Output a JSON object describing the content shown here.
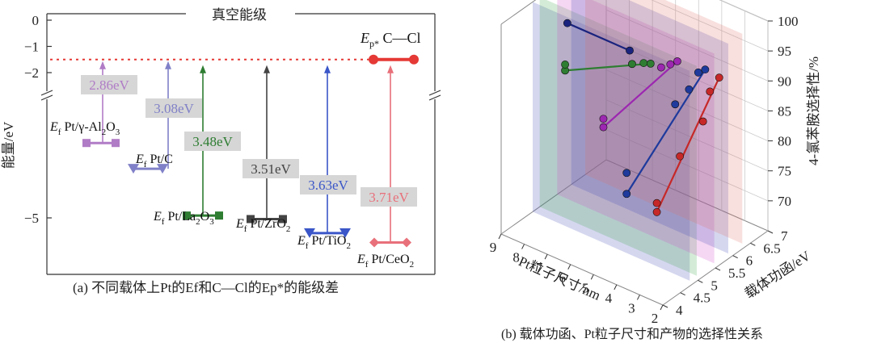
{
  "chart_data": [
    {
      "type": "energy-level-diagram",
      "caption": "(a) 不同载体上Pt的Ef和C—Cl的Ep*的能级差",
      "ylabel": "能量/eV",
      "yticks": [
        "0",
        "−1",
        "−2",
        "−5"
      ],
      "vacuum_label": "真空能级",
      "ep_level": -1.5,
      "ep_label": "Ep* C—Cl",
      "levels": [
        {
          "name": "Ef Pt/γ-Al2O3",
          "label_main": "Pt/γ-Al",
          "label_sub1": "2",
          "label_mid": "O",
          "label_sub2": "3",
          "ef": -4.36,
          "gap": "2.86eV",
          "color": "#b07cc6"
        },
        {
          "name": "Ef Pt/C",
          "label_main": "Pt/C",
          "label_sub1": "",
          "label_mid": "",
          "label_sub2": "",
          "ef": -4.58,
          "gap": "3.08eV",
          "color": "#8080c8"
        },
        {
          "name": "Ef Pt/La2O3",
          "label_main": "Pt/La",
          "label_sub1": "2",
          "label_mid": "O",
          "label_sub2": "3",
          "ef": -4.98,
          "gap": "3.48eV",
          "color": "#2e7d32"
        },
        {
          "name": "Ef Pt/ZrO2",
          "label_main": "Pt/ZrO",
          "label_sub1": "2",
          "label_mid": "",
          "label_sub2": "",
          "ef": -5.01,
          "gap": "3.51eV",
          "color": "#444444"
        },
        {
          "name": "Ef Pt/TiO2",
          "label_main": "Pt/TiO",
          "label_sub1": "2",
          "label_mid": "",
          "label_sub2": "",
          "ef": -5.13,
          "gap": "3.63eV",
          "color": "#3a56c8"
        },
        {
          "name": "Ef Pt/CeO2",
          "label_main": "Pt/CeO",
          "label_sub1": "2",
          "label_mid": "",
          "label_sub2": "",
          "ef": -5.21,
          "gap": "3.71eV",
          "color": "#e8707a"
        }
      ]
    },
    {
      "type": "scatter3d",
      "caption": "(b) 载体功函、Pt粒子尺寸和产物的选择性关系",
      "xlabel": "Pt粒子尺寸/nm",
      "ylabel": "载体功函/eV",
      "zlabel": "4-氯苯胺选择性/%",
      "xticks": [
        "9",
        "8",
        "7",
        "6",
        "5",
        "4",
        "3",
        "2"
      ],
      "yticks": [
        "4",
        "4.5",
        "5",
        "5.5",
        "6",
        "6.5",
        "7"
      ],
      "zticks": [
        "70",
        "75",
        "80",
        "85",
        "90",
        "95",
        "100"
      ],
      "series": [
        {
          "color": "#1a237e",
          "points": [
            [
              7.5,
              4.9,
              99
            ],
            [
              4.8,
              4.9,
              99
            ]
          ]
        },
        {
          "color": "#2e7d32",
          "points": [
            [
              7.9,
              5.1,
              89.6
            ],
            [
              7.9,
              5.1,
              90.6
            ],
            [
              5.0,
              5.1,
              95.6
            ],
            [
              4.5,
              5.1,
              96.6
            ],
            [
              4.2,
              5.1,
              97
            ]
          ]
        },
        {
          "color": "#9c27b0",
          "points": [
            [
              7.0,
              5.6,
              79.6
            ],
            [
              7.0,
              5.6,
              81
            ],
            [
              4.5,
              5.6,
              93.8
            ],
            [
              4.1,
              5.6,
              95
            ],
            [
              3.8,
              5.6,
              96
            ]
          ]
        },
        {
          "color": "#1e3a9c",
          "points": [
            [
              6.6,
              6.0,
              67.5
            ],
            [
              6.6,
              6.0,
              71
            ],
            [
              4.5,
              6.0,
              86
            ],
            [
              3.9,
              6.0,
              89.5
            ],
            [
              3.5,
              6.0,
              93
            ],
            [
              3.2,
              6.0,
              94
            ]
          ]
        },
        {
          "color": "#c62828",
          "points": [
            [
              5.9,
              6.4,
              64
            ],
            [
              5.9,
              6.4,
              65.5
            ],
            [
              4.9,
              6.4,
              75
            ],
            [
              3.9,
              6.4,
              82.5
            ],
            [
              3.6,
              6.4,
              88
            ],
            [
              3.2,
              6.4,
              91
            ]
          ]
        }
      ]
    }
  ]
}
